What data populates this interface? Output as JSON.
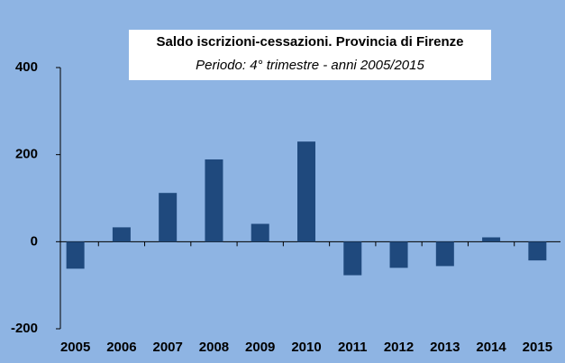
{
  "chart_data": {
    "type": "bar",
    "title": "Saldo iscrizioni-cessazioni. Provincia di Firenze",
    "subtitle": "Periodo: 4° trimestre - anni 2005/2015",
    "categories": [
      "2005",
      "2006",
      "2007",
      "2008",
      "2009",
      "2010",
      "2011",
      "2012",
      "2013",
      "2014",
      "2015"
    ],
    "values": [
      -62,
      33,
      112,
      189,
      41,
      230,
      -77,
      -60,
      -56,
      10,
      -43
    ],
    "color": "#1f497d",
    "ylim": [
      -200,
      400
    ],
    "yticks": [
      -200,
      0,
      200,
      400
    ],
    "grid": false
  }
}
